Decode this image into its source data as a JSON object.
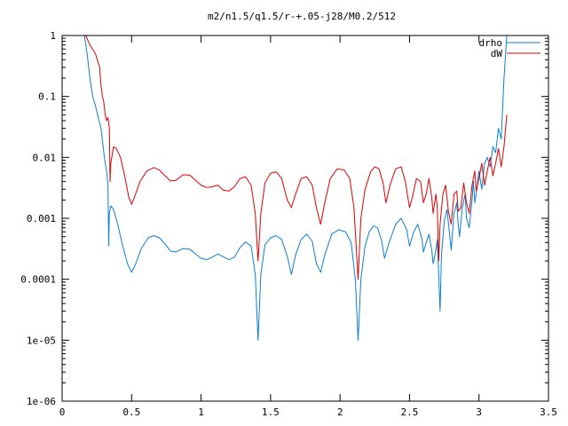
{
  "chart_data": {
    "type": "line",
    "title": "m2/n1.5/q1.5/r-+.05-j28/M0.2/512",
    "xlabel": "",
    "ylabel": "",
    "xlim": [
      0,
      3.5
    ],
    "ylim": [
      1e-06,
      1
    ],
    "yscale": "log",
    "grid": false,
    "legend": "top-right",
    "x_ticks": [
      {
        "value": 0,
        "label": "0"
      },
      {
        "value": 0.5,
        "label": "0.5"
      },
      {
        "value": 1,
        "label": "1"
      },
      {
        "value": 1.5,
        "label": "1.5"
      },
      {
        "value": 2,
        "label": "2"
      },
      {
        "value": 2.5,
        "label": "2.5"
      },
      {
        "value": 3,
        "label": "3"
      },
      {
        "value": 3.5,
        "label": "3.5"
      }
    ],
    "y_ticks": [
      {
        "value": 1,
        "label": "1"
      },
      {
        "value": 0.1,
        "label": "0.1"
      },
      {
        "value": 0.01,
        "label": "0.01"
      },
      {
        "value": 0.001,
        "label": "0.001"
      },
      {
        "value": 0.0001,
        "label": "0.0001"
      },
      {
        "value": 1e-05,
        "label": "1e-05"
      },
      {
        "value": 1e-06,
        "label": "1e-06"
      }
    ],
    "series": [
      {
        "name": "drho",
        "color": "#0b7fd6",
        "points": [
          [
            0.16,
            1.0
          ],
          [
            0.18,
            0.5
          ],
          [
            0.2,
            0.2
          ],
          [
            0.22,
            0.1
          ],
          [
            0.24,
            0.07
          ],
          [
            0.26,
            0.045
          ],
          [
            0.28,
            0.03
          ],
          [
            0.3,
            0.012
          ],
          [
            0.31,
            0.008
          ],
          [
            0.32,
            0.006
          ],
          [
            0.33,
            0.0035
          ],
          [
            0.335,
            0.00035
          ],
          [
            0.34,
            0.0012
          ],
          [
            0.35,
            0.0016
          ],
          [
            0.37,
            0.0014
          ],
          [
            0.4,
            0.0008
          ],
          [
            0.43,
            0.0004
          ],
          [
            0.47,
            0.00018
          ],
          [
            0.5,
            0.00013
          ],
          [
            0.53,
            0.00018
          ],
          [
            0.57,
            0.00032
          ],
          [
            0.62,
            0.00048
          ],
          [
            0.66,
            0.00052
          ],
          [
            0.7,
            0.00048
          ],
          [
            0.74,
            0.00038
          ],
          [
            0.78,
            0.00029
          ],
          [
            0.82,
            0.00028
          ],
          [
            0.87,
            0.00032
          ],
          [
            0.92,
            0.00031
          ],
          [
            0.96,
            0.00026
          ],
          [
            1.0,
            0.00022
          ],
          [
            1.04,
            0.00021
          ],
          [
            1.08,
            0.00023
          ],
          [
            1.12,
            0.00026
          ],
          [
            1.15,
            0.00024
          ],
          [
            1.2,
            0.00021
          ],
          [
            1.24,
            0.00023
          ],
          [
            1.28,
            0.00033
          ],
          [
            1.32,
            0.00041
          ],
          [
            1.36,
            0.00035
          ],
          [
            1.39,
            0.00012
          ],
          [
            1.41,
            1e-05
          ],
          [
            1.43,
            0.00012
          ],
          [
            1.46,
            0.00037
          ],
          [
            1.5,
            0.00048
          ],
          [
            1.54,
            0.00052
          ],
          [
            1.58,
            0.00045
          ],
          [
            1.62,
            0.00024
          ],
          [
            1.65,
            0.00012
          ],
          [
            1.68,
            0.00025
          ],
          [
            1.72,
            0.00045
          ],
          [
            1.76,
            0.00055
          ],
          [
            1.8,
            0.00042
          ],
          [
            1.83,
            0.00018
          ],
          [
            1.86,
            0.00013
          ],
          [
            1.89,
            0.00025
          ],
          [
            1.94,
            0.00055
          ],
          [
            1.99,
            0.00065
          ],
          [
            2.04,
            0.0006
          ],
          [
            2.08,
            0.0004
          ],
          [
            2.11,
            0.0001
          ],
          [
            2.13,
            1e-05
          ],
          [
            2.15,
            0.0001
          ],
          [
            2.18,
            0.00035
          ],
          [
            2.21,
            0.0006
          ],
          [
            2.24,
            0.00075
          ],
          [
            2.27,
            0.0007
          ],
          [
            2.3,
            0.00042
          ],
          [
            2.32,
            0.00022
          ],
          [
            2.35,
            0.00038
          ],
          [
            2.4,
            0.0008
          ],
          [
            2.44,
            0.001
          ],
          [
            2.48,
            0.00065
          ],
          [
            2.5,
            0.00035
          ],
          [
            2.53,
            0.0006
          ],
          [
            2.56,
            0.0008
          ],
          [
            2.59,
            0.00045
          ],
          [
            2.6,
            0.00028
          ],
          [
            2.62,
            0.0004
          ],
          [
            2.64,
            0.00055
          ],
          [
            2.66,
            0.0003
          ],
          [
            2.67,
            0.00018
          ],
          [
            2.69,
            0.0003
          ],
          [
            2.7,
            0.00045
          ],
          [
            2.71,
            0.00012
          ],
          [
            2.72,
            3e-05
          ],
          [
            2.73,
            0.00025
          ],
          [
            2.75,
            0.0009
          ],
          [
            2.77,
            0.0014
          ],
          [
            2.79,
            0.0005
          ],
          [
            2.8,
            0.0003
          ],
          [
            2.82,
            0.0012
          ],
          [
            2.84,
            0.0018
          ],
          [
            2.85,
            0.0008
          ],
          [
            2.86,
            0.0005
          ],
          [
            2.88,
            0.0015
          ],
          [
            2.9,
            0.0025
          ],
          [
            2.91,
            0.001
          ],
          [
            2.93,
            0.0007
          ],
          [
            2.95,
            0.002
          ],
          [
            2.96,
            0.004
          ],
          [
            2.97,
            0.0018
          ],
          [
            2.98,
            0.0025
          ],
          [
            3.0,
            0.006
          ],
          [
            3.02,
            0.003
          ],
          [
            3.04,
            0.008
          ],
          [
            3.06,
            0.01
          ],
          [
            3.08,
            0.007
          ],
          [
            3.1,
            0.015
          ],
          [
            3.12,
            0.012
          ],
          [
            3.14,
            0.03
          ],
          [
            3.16,
            0.02
          ],
          [
            3.18,
            0.2
          ],
          [
            3.2,
            1.0
          ]
        ]
      },
      {
        "name": "dW",
        "color": "#e00000",
        "points": [
          [
            0.17,
            1.0
          ],
          [
            0.2,
            0.7
          ],
          [
            0.24,
            0.5
          ],
          [
            0.27,
            0.3
          ],
          [
            0.28,
            0.15
          ],
          [
            0.29,
            0.1
          ],
          [
            0.3,
            0.08
          ],
          [
            0.31,
            0.05
          ],
          [
            0.32,
            0.04
          ],
          [
            0.33,
            0.045
          ],
          [
            0.34,
            0.03
          ],
          [
            0.345,
            0.004
          ],
          [
            0.35,
            0.008
          ],
          [
            0.37,
            0.015
          ],
          [
            0.39,
            0.014
          ],
          [
            0.42,
            0.01
          ],
          [
            0.45,
            0.005
          ],
          [
            0.48,
            0.0022
          ],
          [
            0.5,
            0.0017
          ],
          [
            0.52,
            0.0022
          ],
          [
            0.56,
            0.004
          ],
          [
            0.61,
            0.006
          ],
          [
            0.66,
            0.0068
          ],
          [
            0.7,
            0.0062
          ],
          [
            0.74,
            0.005
          ],
          [
            0.78,
            0.0041
          ],
          [
            0.82,
            0.0042
          ],
          [
            0.87,
            0.0052
          ],
          [
            0.92,
            0.0051
          ],
          [
            0.96,
            0.0042
          ],
          [
            1.0,
            0.0035
          ],
          [
            1.04,
            0.0032
          ],
          [
            1.08,
            0.0033
          ],
          [
            1.12,
            0.0035
          ],
          [
            1.16,
            0.0029
          ],
          [
            1.2,
            0.0028
          ],
          [
            1.24,
            0.0033
          ],
          [
            1.28,
            0.0045
          ],
          [
            1.32,
            0.0048
          ],
          [
            1.36,
            0.0035
          ],
          [
            1.39,
            0.0012
          ],
          [
            1.41,
            0.0002
          ],
          [
            1.43,
            0.0012
          ],
          [
            1.46,
            0.0038
          ],
          [
            1.5,
            0.0055
          ],
          [
            1.54,
            0.0058
          ],
          [
            1.58,
            0.0045
          ],
          [
            1.62,
            0.002
          ],
          [
            1.65,
            0.0015
          ],
          [
            1.68,
            0.0025
          ],
          [
            1.72,
            0.0045
          ],
          [
            1.76,
            0.0048
          ],
          [
            1.8,
            0.0035
          ],
          [
            1.83,
            0.0015
          ],
          [
            1.86,
            0.0008
          ],
          [
            1.89,
            0.0018
          ],
          [
            1.93,
            0.0045
          ],
          [
            1.98,
            0.0065
          ],
          [
            2.03,
            0.0062
          ],
          [
            2.07,
            0.0045
          ],
          [
            2.1,
            0.0015
          ],
          [
            2.13,
            0.0001
          ],
          [
            2.15,
            0.001
          ],
          [
            2.18,
            0.003
          ],
          [
            2.22,
            0.0058
          ],
          [
            2.25,
            0.007
          ],
          [
            2.28,
            0.0065
          ],
          [
            2.31,
            0.0038
          ],
          [
            2.33,
            0.0018
          ],
          [
            2.36,
            0.0035
          ],
          [
            2.4,
            0.0065
          ],
          [
            2.44,
            0.007
          ],
          [
            2.47,
            0.004
          ],
          [
            2.5,
            0.0015
          ],
          [
            2.52,
            0.0022
          ],
          [
            2.55,
            0.0045
          ],
          [
            2.58,
            0.004
          ],
          [
            2.6,
            0.0018
          ],
          [
            2.62,
            0.0025
          ],
          [
            2.64,
            0.0045
          ],
          [
            2.66,
            0.0022
          ],
          [
            2.67,
            0.0012
          ],
          [
            2.69,
            0.0025
          ],
          [
            2.7,
            0.0015
          ],
          [
            2.71,
            0.0002
          ],
          [
            2.72,
            0.0008
          ],
          [
            2.74,
            0.0025
          ],
          [
            2.76,
            0.0035
          ],
          [
            2.78,
            0.0013
          ],
          [
            2.8,
            0.0008
          ],
          [
            2.82,
            0.0025
          ],
          [
            2.84,
            0.0028
          ],
          [
            2.85,
            0.0013
          ],
          [
            2.87,
            0.0015
          ],
          [
            2.89,
            0.0038
          ],
          [
            2.91,
            0.0018
          ],
          [
            2.93,
            0.0012
          ],
          [
            2.95,
            0.0035
          ],
          [
            2.97,
            0.006
          ],
          [
            2.98,
            0.0028
          ],
          [
            3.0,
            0.0045
          ],
          [
            3.02,
            0.008
          ],
          [
            3.04,
            0.0035
          ],
          [
            3.06,
            0.006
          ],
          [
            3.08,
            0.01
          ],
          [
            3.1,
            0.005
          ],
          [
            3.12,
            0.008
          ],
          [
            3.14,
            0.014
          ],
          [
            3.16,
            0.007
          ],
          [
            3.18,
            0.015
          ],
          [
            3.2,
            0.05
          ]
        ]
      }
    ]
  }
}
